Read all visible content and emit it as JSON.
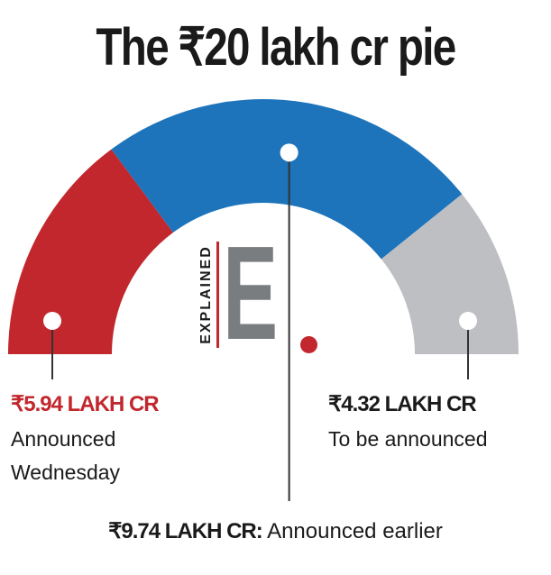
{
  "title": "The ₹20 lakh cr pie",
  "logo": {
    "word": "EXPLAINED",
    "letter": "E"
  },
  "chart_data": {
    "type": "pie",
    "style": "semicircle-gauge",
    "slices": [
      {
        "value_text": "₹5.94 LAKH CR",
        "desc_lines": [
          "Announced",
          "Wednesday"
        ],
        "value": 5.94,
        "color": "#c1272d"
      },
      {
        "value_text": "₹9.74 LAKH CR:",
        "desc_lines": [
          "Announced earlier"
        ],
        "value": 9.74,
        "color": "#1d74bb"
      },
      {
        "value_text": "₹4.32 LAKH CR",
        "desc_lines": [
          "To be announced"
        ],
        "value": 4.32,
        "color": "#bdbfc2"
      }
    ]
  }
}
